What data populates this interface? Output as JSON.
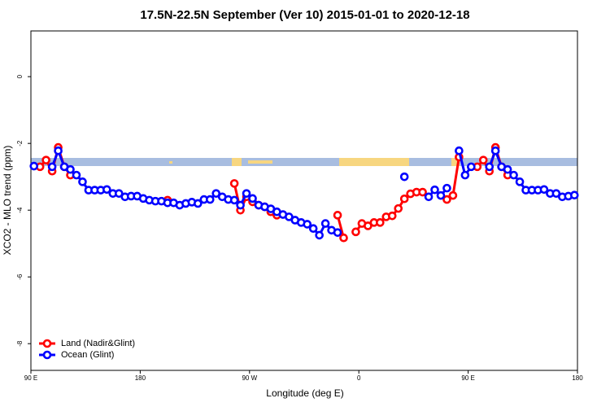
{
  "chart_data": {
    "type": "line",
    "title": "17.5N-22.5N September (Ver 10)   2015-01-01 to 2020-12-18",
    "x_label": "Longitude (deg E)",
    "y_label": "XCO2 - MLO trend (ppm)",
    "x": [
      92.5,
      97.5,
      102.5,
      107.5,
      112.5,
      117.5,
      122.5,
      127.5,
      132.5,
      137.5,
      142.5,
      147.5,
      152.5,
      157.5,
      162.5,
      167.5,
      172.5,
      177.5,
      182.5,
      187.5,
      192.5,
      197.5,
      202.5,
      207.5,
      212.5,
      217.5,
      222.5,
      227.5,
      232.5,
      237.5,
      242.5,
      247.5,
      252.5,
      257.5,
      262.5,
      267.5,
      272.5,
      277.5,
      282.5,
      287.5,
      292.5,
      297.5,
      302.5,
      307.5,
      312.5,
      317.5,
      322.5,
      327.5,
      332.5,
      337.5,
      342.5,
      347.5,
      352.5,
      357.5,
      362.5,
      367.5,
      372.5,
      377.5,
      382.5,
      387.5,
      392.5,
      397.5,
      402.5,
      407.5,
      412.5,
      417.5,
      422.5,
      427.5,
      432.5,
      437.5,
      442.5,
      447.5,
      452.5,
      457.5,
      462.5,
      467.5,
      472.5,
      477.5,
      482.5,
      487.5,
      492.5,
      497.5,
      502.5,
      507.5,
      512.5,
      517.5,
      522.5,
      527.5,
      532.5,
      537.5
    ],
    "series": [
      {
        "name": "Land (Nadir&Glint)",
        "color": "#ff0000",
        "values": [
          null,
          -2.7,
          -2.5,
          -2.83,
          -2.12,
          -2.7,
          -2.95,
          null,
          null,
          null,
          null,
          null,
          null,
          null,
          null,
          null,
          null,
          null,
          null,
          null,
          null,
          null,
          -3.7,
          null,
          null,
          null,
          null,
          null,
          null,
          null,
          null,
          null,
          null,
          -3.2,
          -4.0,
          -3.6,
          -3.75,
          -3.85,
          -3.9,
          -4.05,
          -4.15,
          null,
          null,
          null,
          null,
          null,
          null,
          null,
          null,
          null,
          -4.15,
          -4.83,
          null,
          -4.65,
          -4.4,
          -4.47,
          -4.37,
          -4.37,
          -4.2,
          -4.17,
          -3.95,
          -3.66,
          -3.51,
          -3.46,
          -3.46,
          null,
          null,
          null,
          -3.68,
          -3.56,
          -2.41,
          null,
          null,
          -2.7,
          -2.5,
          -2.83,
          -2.12,
          -2.7,
          -2.95,
          null,
          null,
          null,
          null,
          null,
          null,
          null,
          null,
          null,
          null,
          null
        ]
      },
      {
        "name": "Ocean (Glint)",
        "color": "#0000ff",
        "values": [
          -2.68,
          null,
          null,
          -2.7,
          -2.22,
          -2.7,
          -2.78,
          -2.95,
          -3.15,
          -3.4,
          -3.4,
          -3.4,
          -3.38,
          -3.5,
          -3.5,
          -3.6,
          -3.58,
          -3.58,
          -3.65,
          -3.7,
          -3.73,
          -3.73,
          -3.78,
          -3.78,
          -3.85,
          -3.8,
          -3.76,
          -3.8,
          -3.68,
          -3.68,
          -3.5,
          -3.6,
          -3.68,
          -3.7,
          -3.85,
          -3.5,
          -3.65,
          -3.85,
          -3.9,
          -3.96,
          -4.05,
          -4.13,
          -4.2,
          -4.3,
          -4.37,
          -4.42,
          -4.55,
          -4.75,
          -4.4,
          -4.6,
          -4.67,
          null,
          null,
          null,
          null,
          null,
          null,
          null,
          null,
          null,
          null,
          -3.0,
          null,
          null,
          null,
          -3.6,
          -3.39,
          -3.56,
          -3.34,
          null,
          -2.22,
          -2.95,
          -2.7,
          null,
          null,
          -2.7,
          -2.22,
          -2.7,
          -2.78,
          -2.95,
          -3.15,
          -3.4,
          -3.4,
          -3.4,
          -3.38,
          -3.5,
          -3.5,
          -3.6,
          -3.58,
          -3.55
        ]
      }
    ],
    "xlim": [
      90,
      540
    ],
    "xticks": [
      {
        "value": 90,
        "label": "90 E"
      },
      180,
      {
        "value": 270,
        "label": "90 W"
      },
      {
        "value": 360,
        "label": "0"
      },
      {
        "value": 450,
        "label": "90 E"
      },
      {
        "value": 540,
        "label": "180"
      }
    ],
    "ylim": [
      -8.8,
      1.37
    ],
    "yticks": [
      0,
      -2,
      -4,
      -6,
      -8
    ],
    "legend": "bottom-left"
  }
}
